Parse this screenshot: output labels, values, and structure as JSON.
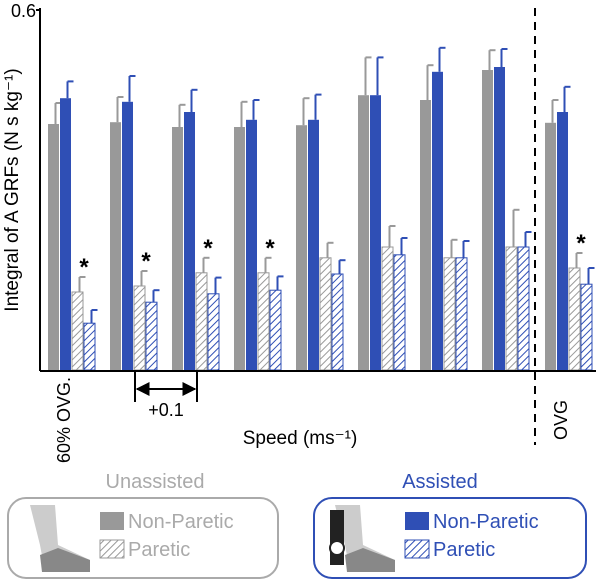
{
  "chart_data": {
    "type": "bar",
    "y_label": "Integral of A GRFs (N s kg⁻¹)",
    "x_label": "Speed (ms⁻¹)",
    "categories": [
      "60% OVG.",
      null,
      null,
      null,
      null,
      null,
      null,
      null,
      "OVG"
    ],
    "ylim": [
      0,
      0.6
    ],
    "yticks": [
      0.6
    ],
    "significance_marker": "*",
    "significant": [
      true,
      true,
      true,
      true,
      false,
      false,
      false,
      false,
      true
    ],
    "step_annotation": "+0.1",
    "series": [
      {
        "name": "Non-Paretic",
        "group": "Unassisted",
        "color": "#999999",
        "hatched": false,
        "values": [
          0.41,
          0.413,
          0.405,
          0.405,
          0.408,
          0.458,
          0.45,
          0.5,
          0.412
        ],
        "errors": [
          0.035,
          0.042,
          0.037,
          0.042,
          0.045,
          0.063,
          0.058,
          0.033,
          0.038
        ]
      },
      {
        "name": "Non-Paretic",
        "group": "Assisted",
        "color": "#2f4fb5",
        "hatched": false,
        "values": [
          0.453,
          0.447,
          0.43,
          0.417,
          0.417,
          0.458,
          0.497,
          0.505,
          0.43
        ],
        "errors": [
          0.028,
          0.043,
          0.037,
          0.033,
          0.042,
          0.063,
          0.04,
          0.03,
          0.042
        ]
      },
      {
        "name": "Paretic",
        "group": "Unassisted",
        "color": "#999999",
        "hatched": true,
        "values": [
          0.13,
          0.14,
          0.162,
          0.162,
          0.187,
          0.205,
          0.187,
          0.205,
          0.17
        ],
        "errors": [
          0.025,
          0.025,
          0.025,
          0.025,
          0.025,
          0.035,
          0.03,
          0.062,
          0.025
        ]
      },
      {
        "name": "Paretic",
        "group": "Assisted",
        "color": "#2f4fb5",
        "hatched": true,
        "values": [
          0.078,
          0.113,
          0.127,
          0.133,
          0.16,
          0.192,
          0.187,
          0.205,
          0.143
        ],
        "errors": [
          0.022,
          0.02,
          0.027,
          0.023,
          0.023,
          0.028,
          0.028,
          0.025,
          0.027
        ]
      }
    ]
  }
}
